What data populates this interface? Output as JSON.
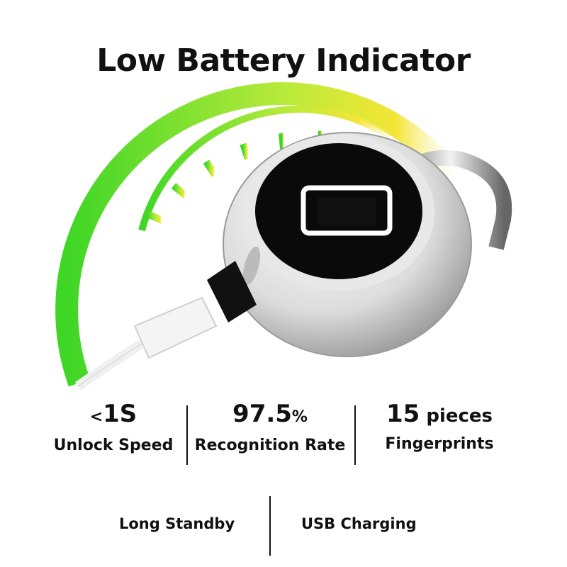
{
  "title": "Low Battery Indicator",
  "stats": [
    {
      "prefix": "<",
      "value": "1S",
      "suffix": "",
      "label": "Unlock Speed"
    },
    {
      "prefix": "",
      "value": "97.5",
      "suffix": "%",
      "label": "Recognition Rate"
    },
    {
      "prefix": "",
      "value": "15",
      "suffix": " pieces",
      "label": "Fingerprints"
    }
  ],
  "features": [
    "Long Standby",
    "USB Charging"
  ],
  "colors": {
    "gauge_start": "#3fd626",
    "gauge_end": "#f4e635",
    "lock_face": "#0a0a0a"
  }
}
